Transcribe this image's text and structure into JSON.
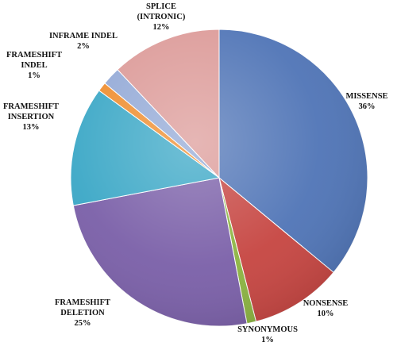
{
  "chart_data": {
    "type": "pie",
    "title": "",
    "slices": [
      {
        "label": [
          "MISSENSE"
        ],
        "percent": 36,
        "value_label": "36%",
        "color": "#4f74b6"
      },
      {
        "label": [
          "NONSENSE"
        ],
        "percent": 10,
        "value_label": "10%",
        "color": "#c64541"
      },
      {
        "label": [
          "SYNONYMOUS"
        ],
        "percent": 1,
        "value_label": "1%",
        "color": "#8cb441"
      },
      {
        "label": [
          "FRAMESHIFT",
          "DELETION"
        ],
        "percent": 25,
        "value_label": "25%",
        "color": "#7a5fa8"
      },
      {
        "label": [
          "FRAMESHIFT",
          "INSERTION"
        ],
        "percent": 13,
        "value_label": "13%",
        "color": "#3aa7c6"
      },
      {
        "label": [
          "FRAMESHIFT",
          "INDEL"
        ],
        "percent": 1,
        "value_label": "1%",
        "color": "#ef8d2e"
      },
      {
        "label": [
          "INFRAME INDEL"
        ],
        "percent": 2,
        "value_label": "2%",
        "color": "#93a9d6"
      },
      {
        "label": [
          "SPLICE",
          "(INTRONIC)"
        ],
        "percent": 12,
        "value_label": "12%",
        "color": "#dc9a98"
      }
    ]
  }
}
